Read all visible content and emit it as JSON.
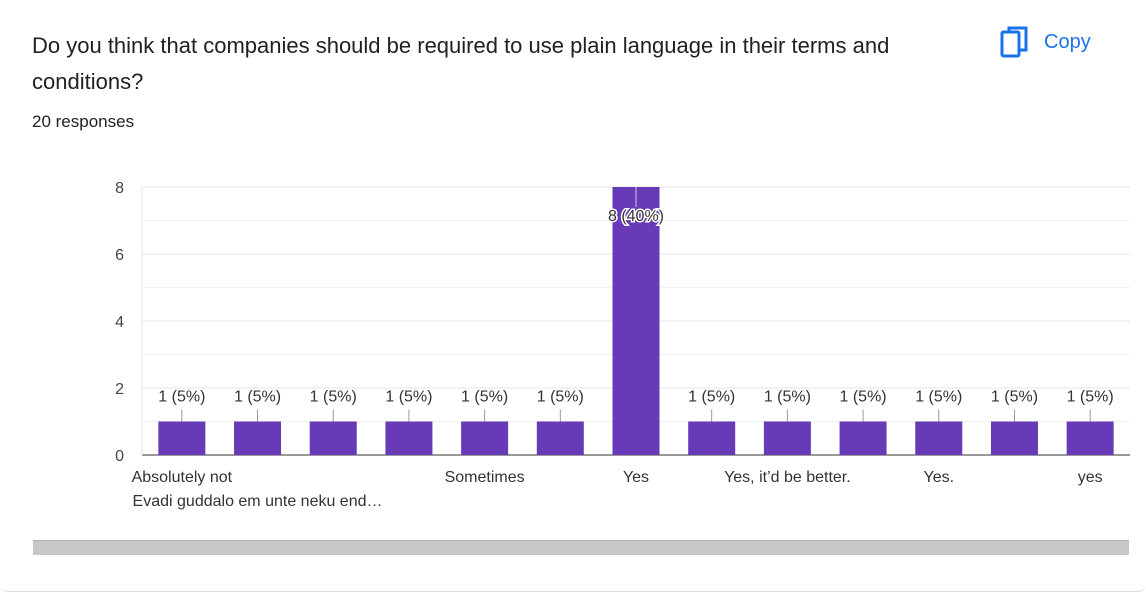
{
  "question": {
    "title": "Do you think that companies should be required to use plain language in their terms and conditions?",
    "responses": "20 responses"
  },
  "toolbar": {
    "copy_label": "Copy",
    "copy_icon": "copy-icon"
  },
  "colors": {
    "bar": "#673ab7",
    "accent": "#1a73e8"
  },
  "chart_data": {
    "type": "bar",
    "categories": [
      "Absolutely not",
      "Evadi guddalo em unte neku end…",
      "",
      "",
      "Sometimes",
      "",
      "Yes",
      "",
      "Yes, it’d be better.",
      "",
      "Yes.",
      "",
      "yes"
    ],
    "values": [
      1,
      1,
      1,
      1,
      1,
      1,
      8,
      1,
      1,
      1,
      1,
      1,
      1
    ],
    "data_labels": [
      "1 (5%)",
      "1 (5%)",
      "1 (5%)",
      "1 (5%)",
      "1 (5%)",
      "1 (5%)",
      "8 (40%)",
      "1 (5%)",
      "1 (5%)",
      "1 (5%)",
      "1 (5%)",
      "1 (5%)",
      "1 (5%)"
    ],
    "yticks": [
      0,
      2,
      4,
      6,
      8
    ],
    "ylim": [
      0,
      8
    ],
    "grid": true,
    "title": "",
    "xlabel": "",
    "ylabel": ""
  }
}
